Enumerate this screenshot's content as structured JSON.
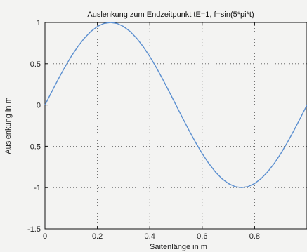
{
  "chart_data": {
    "type": "line",
    "title": "Auslenkung zum Endzeitpunkt tE=1, f=sin(5*pi*t)",
    "xlabel": "Saitenlänge in m",
    "ylabel": "Auslenkung in m",
    "xlim": [
      0,
      1
    ],
    "ylim": [
      -1.5,
      1
    ],
    "grid": true,
    "xticks": [
      0,
      0.2,
      0.4,
      0.6,
      0.8
    ],
    "xtick_labels": [
      "0",
      "0.2",
      "0.4",
      "0.6",
      "0.8"
    ],
    "yticks": [
      1,
      0.5,
      0,
      -0.5,
      -1,
      -1.5
    ],
    "ytick_labels": [
      "1",
      "0.5",
      "0",
      "-0.5",
      "-1",
      "-1.5"
    ],
    "series": [
      {
        "color": "#5b8fd0",
        "x": [
          0,
          0.025,
          0.05,
          0.075,
          0.1,
          0.125,
          0.15,
          0.175,
          0.2,
          0.225,
          0.25,
          0.275,
          0.3,
          0.325,
          0.35,
          0.375,
          0.4,
          0.425,
          0.45,
          0.475,
          0.5,
          0.525,
          0.55,
          0.575,
          0.6,
          0.625,
          0.65,
          0.675,
          0.7,
          0.725,
          0.75,
          0.775,
          0.8,
          0.825,
          0.85,
          0.875,
          0.9,
          0.925,
          0.95,
          0.975,
          1.0
        ],
        "y": [
          0,
          0.156,
          0.309,
          0.454,
          0.588,
          0.707,
          0.809,
          0.891,
          0.951,
          0.988,
          1.0,
          0.988,
          0.951,
          0.891,
          0.809,
          0.707,
          0.588,
          0.454,
          0.309,
          0.156,
          0,
          -0.156,
          -0.309,
          -0.454,
          -0.588,
          -0.707,
          -0.809,
          -0.891,
          -0.951,
          -0.988,
          -1.0,
          -0.988,
          -0.951,
          -0.891,
          -0.809,
          -0.707,
          -0.588,
          -0.454,
          -0.309,
          -0.156,
          0
        ]
      }
    ]
  }
}
